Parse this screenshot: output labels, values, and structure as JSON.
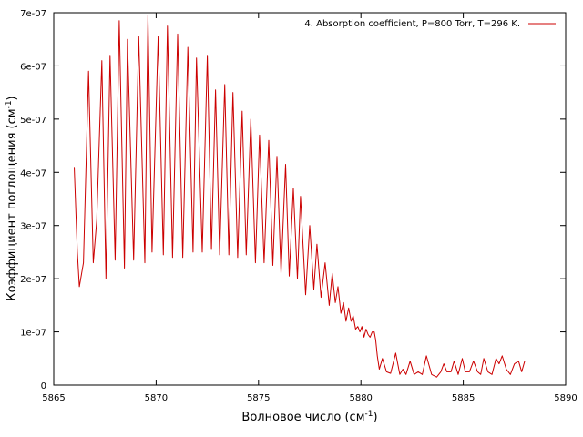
{
  "chart_data": {
    "type": "line",
    "xlabel": "Волновое число (см",
    "xlabel_sup": "-1",
    "xlabel_end": ")",
    "ylabel": "Коэффициент поглощения (см",
    "ylabel_sup": "-1",
    "ylabel_end": ")",
    "xlim": [
      5865,
      5890
    ],
    "ylim": [
      0,
      7e-07
    ],
    "xticks": [
      {
        "v": 5865,
        "label": "5865"
      },
      {
        "v": 5870,
        "label": "5870"
      },
      {
        "v": 5875,
        "label": "5875"
      },
      {
        "v": 5880,
        "label": "5880"
      },
      {
        "v": 5885,
        "label": "5885"
      },
      {
        "v": 5890,
        "label": "5890"
      }
    ],
    "yticks": [
      {
        "v": 0,
        "label": "0"
      },
      {
        "v": 1e-07,
        "label": "1e-07"
      },
      {
        "v": 2e-07,
        "label": "2e-07"
      },
      {
        "v": 3e-07,
        "label": "3e-07"
      },
      {
        "v": 4e-07,
        "label": "4e-07"
      },
      {
        "v": 5e-07,
        "label": "5e-07"
      },
      {
        "v": 6e-07,
        "label": "6e-07"
      },
      {
        "v": 7e-07,
        "label": "7e-07"
      }
    ],
    "legend_position": "top-right",
    "series": [
      {
        "name": "4. Absorption coefficient, P=800 Torr, T=296 K.",
        "color": "#cc0000",
        "x": [
          5866.0,
          5866.15,
          5866.25,
          5866.45,
          5866.7,
          5866.93,
          5867.1,
          5867.35,
          5867.55,
          5867.75,
          5868.0,
          5868.2,
          5868.45,
          5868.6,
          5868.9,
          5869.15,
          5869.45,
          5869.6,
          5869.8,
          5870.1,
          5870.35,
          5870.55,
          5870.8,
          5871.05,
          5871.3,
          5871.55,
          5871.8,
          5871.97,
          5872.25,
          5872.5,
          5872.7,
          5872.9,
          5873.1,
          5873.35,
          5873.55,
          5873.75,
          5873.98,
          5874.2,
          5874.4,
          5874.62,
          5874.85,
          5875.05,
          5875.27,
          5875.5,
          5875.7,
          5875.9,
          5876.1,
          5876.32,
          5876.5,
          5876.7,
          5876.9,
          5877.05,
          5877.3,
          5877.5,
          5877.7,
          5877.85,
          5878.05,
          5878.25,
          5878.45,
          5878.6,
          5878.75,
          5878.88,
          5879.02,
          5879.15,
          5879.27,
          5879.4,
          5879.52,
          5879.62,
          5879.74,
          5879.85,
          5879.95,
          5880.05,
          5880.15,
          5880.25,
          5880.35,
          5880.45,
          5880.55,
          5880.65,
          5880.72,
          5880.8,
          5880.9,
          5881.05,
          5881.25,
          5881.45,
          5881.7,
          5881.9,
          5882.05,
          5882.2,
          5882.4,
          5882.6,
          5882.8,
          5883.0,
          5883.2,
          5883.45,
          5883.7,
          5883.9,
          5884.05,
          5884.2,
          5884.4,
          5884.55,
          5884.75,
          5884.95,
          5885.1,
          5885.3,
          5885.5,
          5885.7,
          5885.85,
          5886.0,
          5886.2,
          5886.4,
          5886.6,
          5886.75,
          5886.9,
          5887.1,
          5887.3,
          5887.5,
          5887.7,
          5887.85,
          5888.0
        ],
        "y": [
          4.1e-07,
          2.5e-07,
          1.85e-07,
          2.3e-07,
          5.9e-07,
          2.3e-07,
          3.1e-07,
          6.1e-07,
          2e-07,
          6.2e-07,
          2.35e-07,
          6.85e-07,
          2.2e-07,
          6.5e-07,
          2.35e-07,
          6.55e-07,
          2.3e-07,
          6.95e-07,
          2.5e-07,
          6.55e-07,
          2.45e-07,
          6.75e-07,
          2.4e-07,
          6.6e-07,
          2.4e-07,
          6.35e-07,
          2.5e-07,
          6.15e-07,
          2.5e-07,
          6.2e-07,
          2.55e-07,
          5.55e-07,
          2.45e-07,
          5.65e-07,
          2.45e-07,
          5.5e-07,
          2.4e-07,
          5.15e-07,
          2.45e-07,
          5e-07,
          2.3e-07,
          4.7e-07,
          2.3e-07,
          4.6e-07,
          2.25e-07,
          4.3e-07,
          2.1e-07,
          4.15e-07,
          2.05e-07,
          3.7e-07,
          2e-07,
          3.55e-07,
          1.7e-07,
          3e-07,
          1.8e-07,
          2.65e-07,
          1.65e-07,
          2.3e-07,
          1.5e-07,
          2.1e-07,
          1.55e-07,
          1.85e-07,
          1.35e-07,
          1.55e-07,
          1.2e-07,
          1.45e-07,
          1.2e-07,
          1.3e-07,
          1.05e-07,
          1.1e-07,
          1e-07,
          1.1e-07,
          9e-08,
          1.05e-07,
          9.5e-08,
          9e-08,
          1e-07,
          1e-07,
          8.5e-08,
          5.5e-08,
          3e-08,
          5e-08,
          2.5e-08,
          2.2e-08,
          6e-08,
          2e-08,
          3e-08,
          2e-08,
          4.5e-08,
          2e-08,
          2.5e-08,
          2e-08,
          5.5e-08,
          2e-08,
          1.5e-08,
          2.5e-08,
          4e-08,
          2.5e-08,
          2.5e-08,
          4.5e-08,
          2e-08,
          5e-08,
          2.5e-08,
          2.5e-08,
          4.5e-08,
          2.5e-08,
          2e-08,
          5e-08,
          2.5e-08,
          2e-08,
          5e-08,
          4e-08,
          5.5e-08,
          3e-08,
          2e-08,
          4e-08,
          4.5e-08,
          2.5e-08,
          4.5e-08
        ]
      }
    ]
  }
}
